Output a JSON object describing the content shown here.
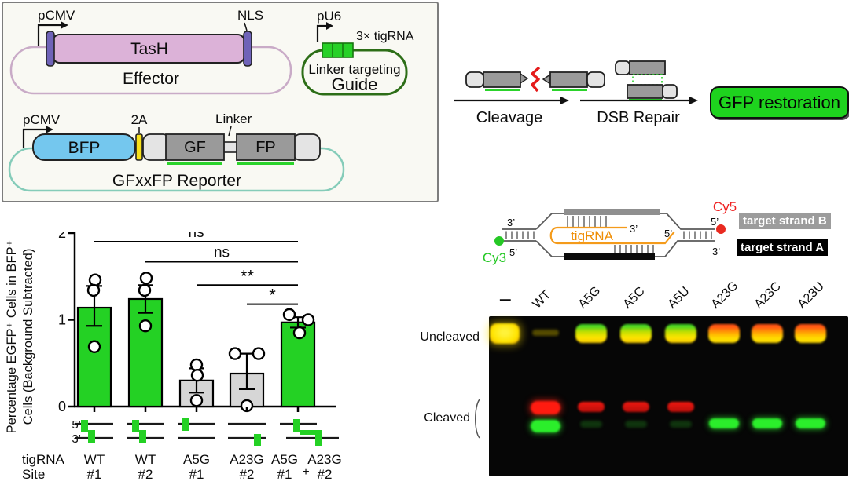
{
  "colors": {
    "green": "#24d124",
    "bar_gray": "#d6d6d6",
    "gfp_green": "#1ed31e",
    "cy3_green": "#22c522",
    "cy5_red": "#e82a20",
    "tigRNA_orange": "#f49b1b",
    "strand_b_gray": "#9c9c9c",
    "strand_a_black": "#000000"
  },
  "constructs": {
    "effector": {
      "promoter": "pCMV",
      "gene": "TasH",
      "nls": "NLS",
      "name": "Effector"
    },
    "guide": {
      "promoter": "pU6",
      "cassette": "3× tigRNA",
      "function": "Linker targeting",
      "name": "Guide"
    },
    "reporter": {
      "promoter": "pCMV",
      "bfp": "BFP",
      "p2a": "2A",
      "gf": "GF",
      "fp": "FP",
      "linker": "Linker",
      "name": "GFxxFP Reporter"
    }
  },
  "pathway": {
    "step1": "Cleavage",
    "step2": "DSB Repair",
    "result": "GFP restoration"
  },
  "chart_data": {
    "type": "bar",
    "ylabel_line1": "Percentage EGFP⁺ Cells in BFP⁺",
    "ylabel_line2": "Cells (Background Subtracted)",
    "ylim": [
      0,
      2
    ],
    "yticks": [
      0,
      1,
      2
    ],
    "row_labels": {
      "tigRNA": "tigRNA",
      "site": "Site"
    },
    "prime5": "5’",
    "prime3": "3’",
    "categories": [
      {
        "tigRNA": "WT",
        "site": "#1",
        "glyph": "step",
        "color": "#24d124",
        "value": 1.14,
        "err_lo": 0.93,
        "err_hi": 1.39,
        "points": [
          1.46,
          1.34,
          0.69
        ]
      },
      {
        "tigRNA": "WT",
        "site": "#2",
        "glyph": "step",
        "color": "#24d124",
        "value": 1.24,
        "err_lo": 1.08,
        "err_hi": 1.4,
        "points": [
          1.48,
          1.34,
          0.93
        ]
      },
      {
        "tigRNA": "A5G",
        "site": "#1",
        "glyph": "top-only",
        "color": "#d6d6d6",
        "value": 0.3,
        "err_lo": 0.16,
        "err_hi": 0.44,
        "points": [
          0.48,
          0.36,
          0.07
        ]
      },
      {
        "tigRNA": "A23G",
        "site": "#2",
        "glyph": "bottom-only",
        "color": "#d6d6d6",
        "value": 0.38,
        "err_lo": 0.2,
        "err_hi": 0.61,
        "points": [
          0.61,
          0.61,
          0.01
        ]
      },
      {
        "tigRNA": "A5G",
        "site": "#1",
        "joiner": "+",
        "tigRNA_b": "A23G",
        "site_b": "#2",
        "glyph": "wide-step",
        "color": "#24d124",
        "value": 0.97,
        "err_lo": 0.91,
        "err_hi": 1.03,
        "points": [
          1.06,
          1.0,
          0.85
        ]
      }
    ],
    "significance": [
      {
        "from": 0,
        "to": 4,
        "height": 1.9,
        "label": "ns"
      },
      {
        "from": 1,
        "to": 4,
        "height": 1.67,
        "label": "ns"
      },
      {
        "from": 2,
        "to": 4,
        "height": 1.4,
        "label": "**"
      },
      {
        "from": 3,
        "to": 4,
        "height": 1.18,
        "label": "*"
      }
    ]
  },
  "duplex": {
    "cy3": "Cy3",
    "cy5": "Cy5",
    "tigRNA": "tigRNA",
    "left_top": "3’",
    "left_bottom": "5’",
    "right_top": "5’",
    "right_bottom": "3’",
    "tig_3": "3’",
    "tig_5": "5’",
    "legend_b": "target strand B",
    "legend_a": "target strand A"
  },
  "gel": {
    "row_labels": {
      "uncleaved": "Uncleaved",
      "cleaved": "Cleaved"
    },
    "lanes": [
      {
        "label": "–",
        "uncleaved": "yellow-bright",
        "red": "none",
        "green": "none"
      },
      {
        "label": "WT",
        "uncleaved": "faint",
        "red": "strong",
        "green": "strong"
      },
      {
        "label": "A5G",
        "uncleaved": "green-top",
        "red": "medium",
        "green": "faint"
      },
      {
        "label": "A5C",
        "uncleaved": "green-top",
        "red": "medium",
        "green": "faint"
      },
      {
        "label": "A5U",
        "uncleaved": "green-top",
        "red": "medium",
        "green": "faint"
      },
      {
        "label": "A23G",
        "uncleaved": "red-top",
        "red": "none",
        "green": "strong"
      },
      {
        "label": "A23C",
        "uncleaved": "red-top",
        "red": "none",
        "green": "strong"
      },
      {
        "label": "A23U",
        "uncleaved": "red-top",
        "red": "none",
        "green": "strong"
      }
    ]
  }
}
